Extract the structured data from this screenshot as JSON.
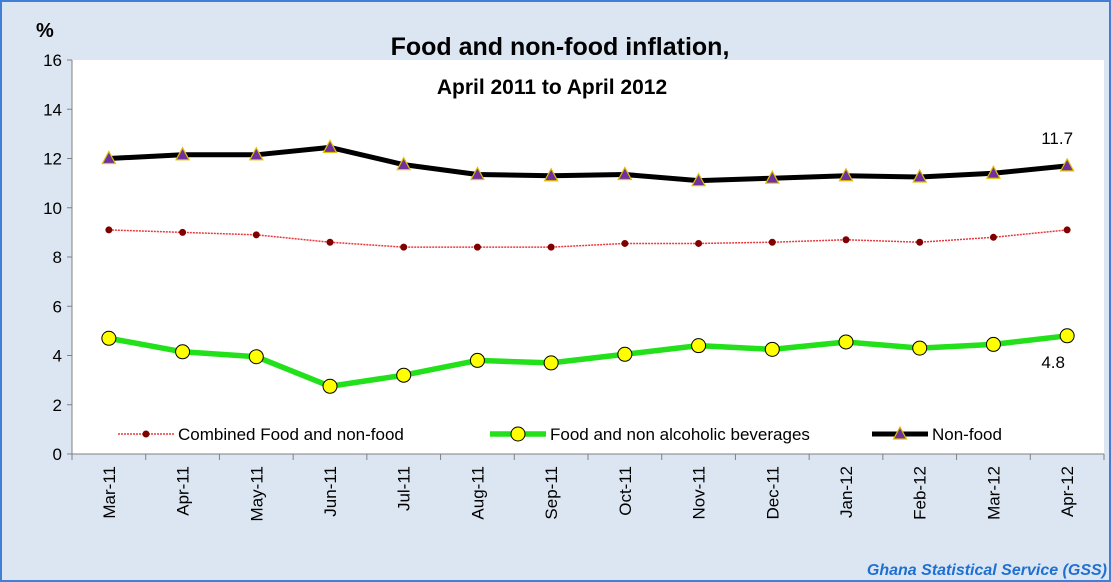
{
  "chart_data": {
    "type": "line",
    "title": "Food and non-food inflation,",
    "subtitle": "April 2011 to April 2012",
    "ylabel": "%",
    "ylim": [
      0,
      16
    ],
    "yticks": [
      0,
      2,
      4,
      6,
      8,
      10,
      12,
      14,
      16
    ],
    "categories": [
      "Mar-11",
      "Apr-11",
      "May-11",
      "Jun-11",
      "Jul-11",
      "Aug-11",
      "Sep-11",
      "Oct-11",
      "Nov-11",
      "Dec-11",
      "Jan-12",
      "Feb-12",
      "Mar-12",
      "Apr-12"
    ],
    "series": [
      {
        "name": "Combined Food and non-food",
        "color": "#e8383d",
        "marker": "dot",
        "values": [
          9.1,
          9.0,
          8.9,
          8.6,
          8.4,
          8.4,
          8.4,
          8.55,
          8.55,
          8.6,
          8.7,
          8.6,
          8.8,
          9.1
        ]
      },
      {
        "name": "Food and non alcoholic beverages",
        "color": "#22e01a",
        "marker": "circle-yellow",
        "values": [
          4.7,
          4.15,
          3.95,
          2.75,
          3.2,
          3.8,
          3.7,
          4.05,
          4.4,
          4.25,
          4.55,
          4.3,
          4.45,
          4.8
        ]
      },
      {
        "name": "Non-food",
        "color": "#000000",
        "marker": "triangle-purple",
        "values": [
          12.0,
          12.15,
          12.15,
          12.45,
          11.75,
          11.35,
          11.3,
          11.35,
          11.1,
          11.2,
          11.3,
          11.25,
          11.4,
          11.7
        ]
      }
    ],
    "annotations": [
      {
        "series": 2,
        "index": 13,
        "text": "11.7"
      },
      {
        "series": 1,
        "index": 13,
        "text": "4.8"
      }
    ],
    "legend_position": "bottom-inside",
    "grid": false
  },
  "credit": "Ghana Statistical Service (GSS)"
}
